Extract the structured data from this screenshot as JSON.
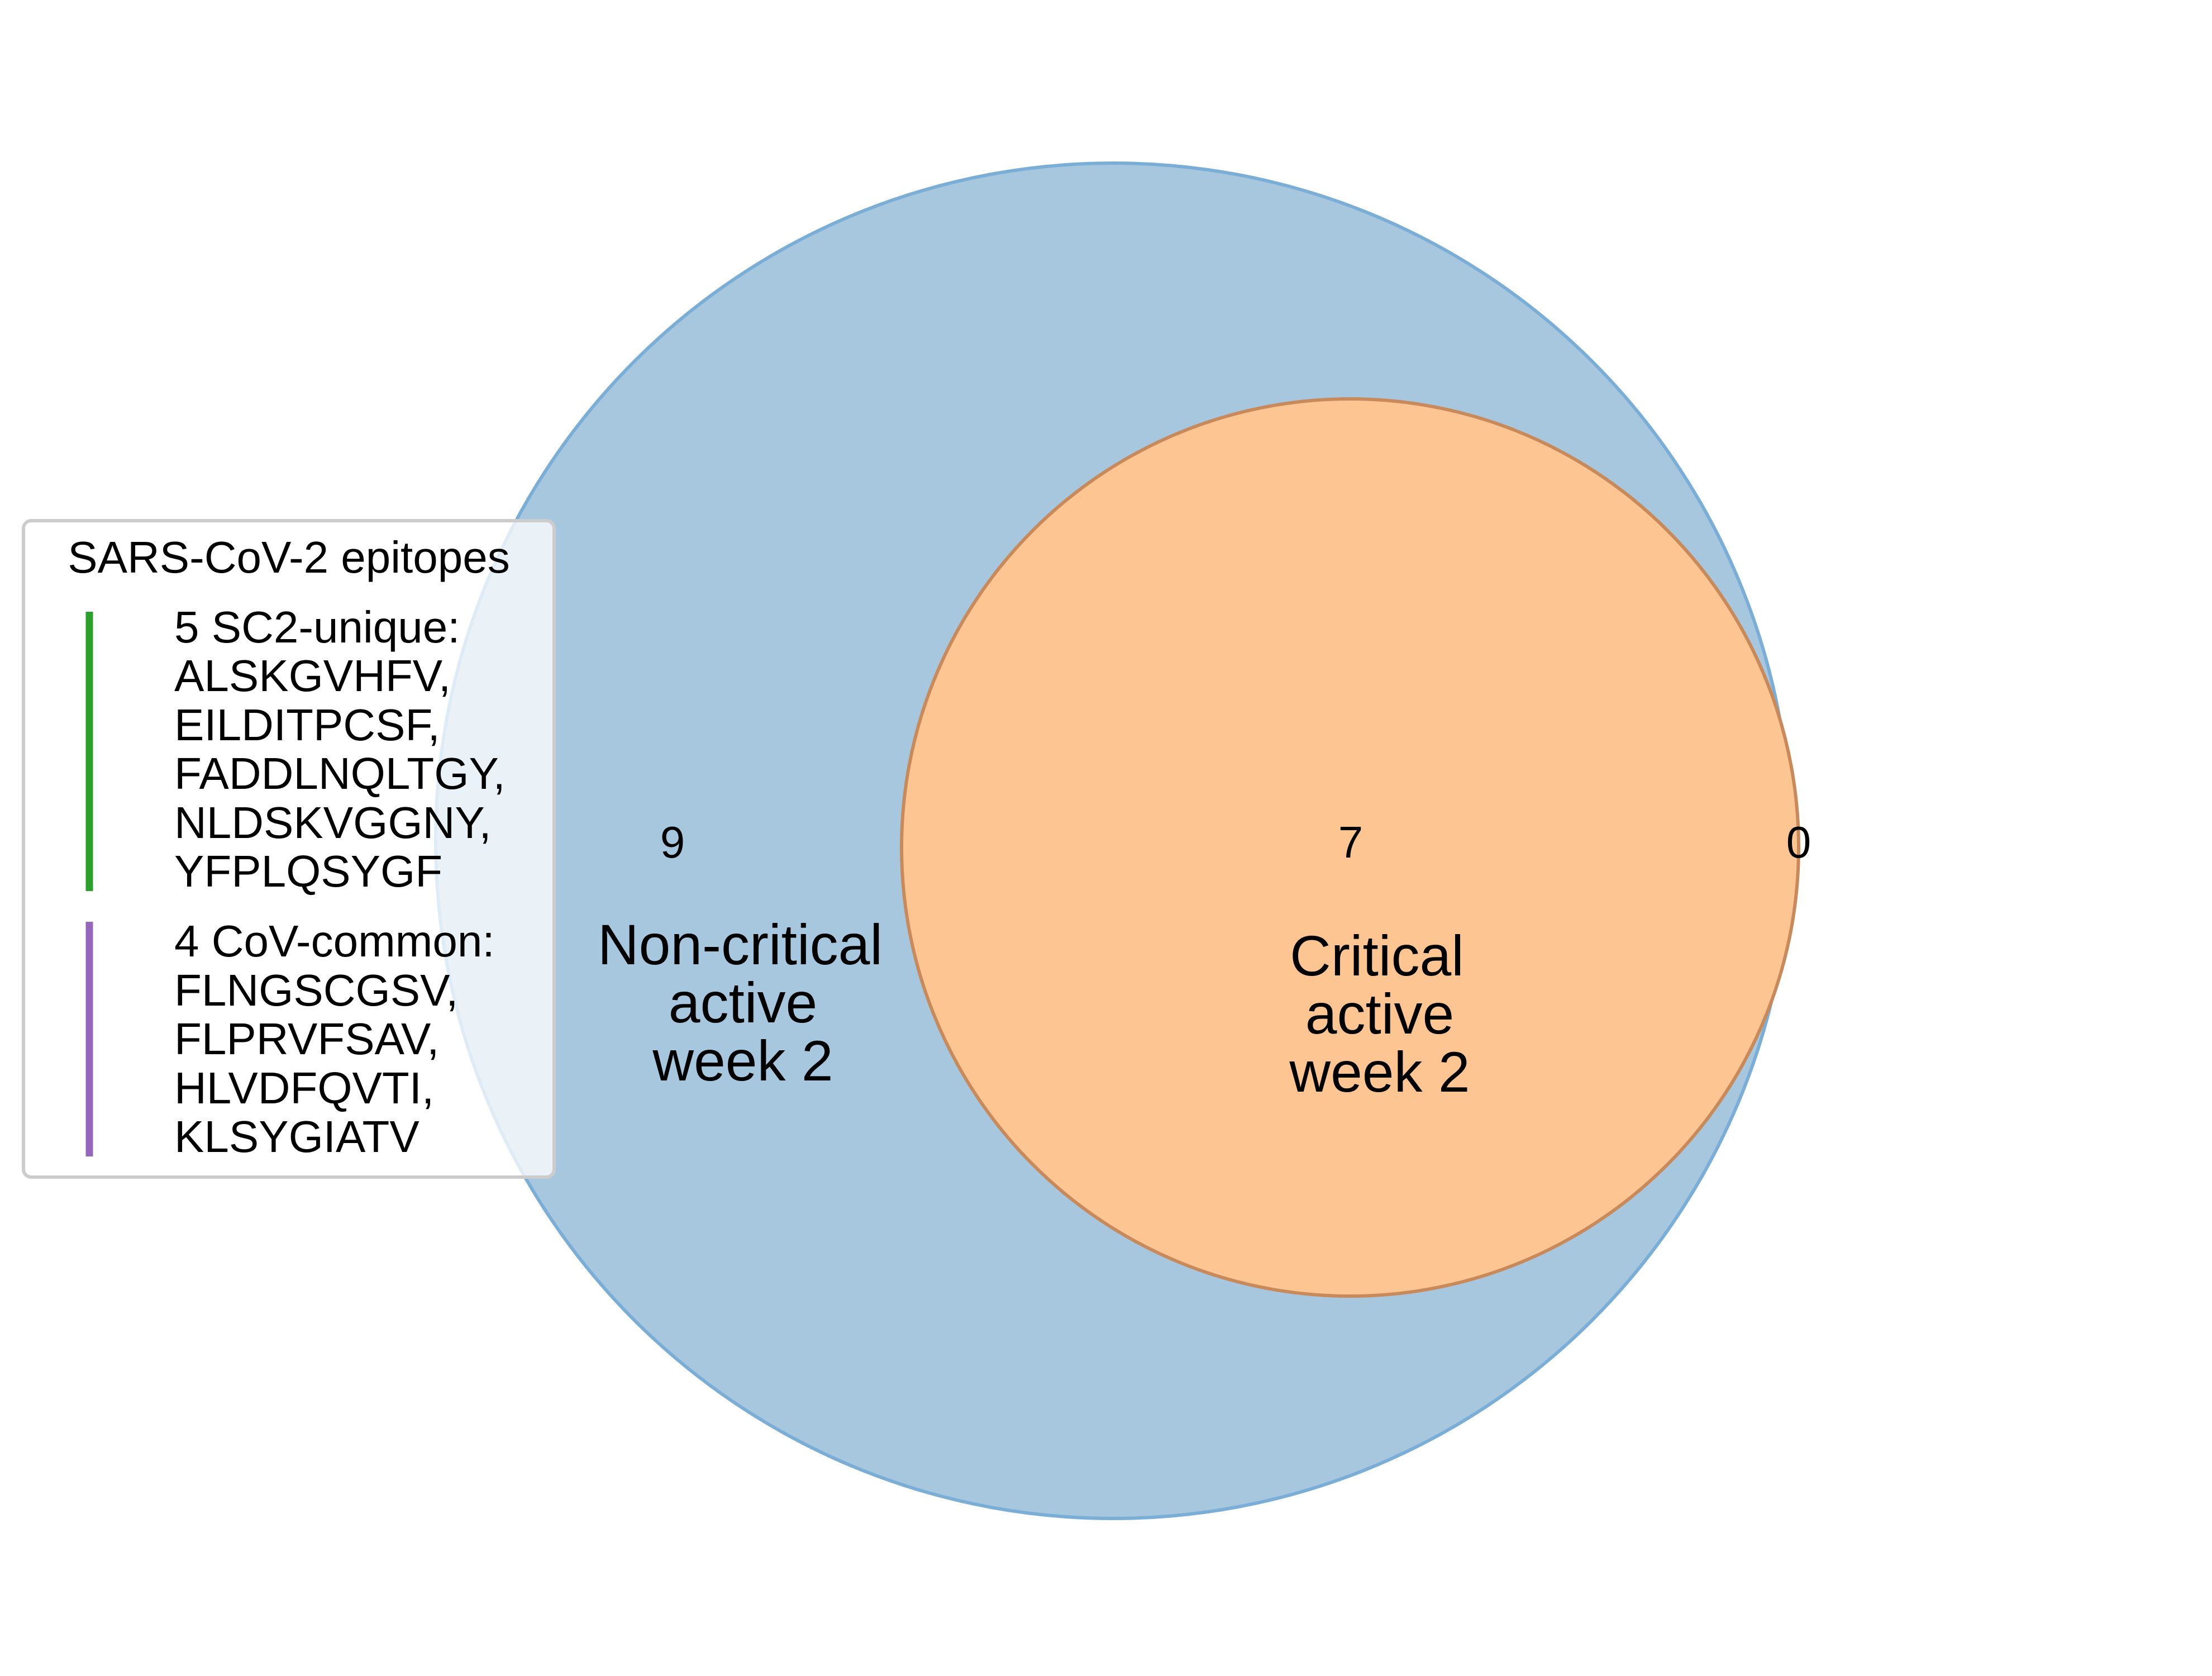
{
  "colors": {
    "set_a_fill": "#a7c7df",
    "set_a_stroke": "#7aaed6",
    "set_b_fill": "#fdc592",
    "set_b_stroke": "#c88a5a",
    "legend_bar_sc2": "#2ca02c",
    "legend_bar_cov": "#9467bd"
  },
  "sets": {
    "a": {
      "label_lines": [
        "Non-critical",
        "active",
        "week 2"
      ]
    },
    "b": {
      "label_lines": [
        "Critical",
        "active",
        "week 2"
      ]
    }
  },
  "counts": {
    "a_only": "9",
    "a_and_b": "7",
    "b_only": "0"
  },
  "legend": {
    "title": "SARS-CoV-2 epitopes",
    "groups": [
      {
        "color": "#2ca02c",
        "lines": [
          "5 SC2-unique:",
          "ALSKGVHFV,",
          "EILDITPCSF,",
          "FADDLNQLTGY,",
          "NLDSKVGGNY,",
          "YFPLQSYGF"
        ]
      },
      {
        "color": "#9467bd",
        "lines": [
          "4 CoV-common:",
          "FLNGSCGSV,",
          "FLPRVFSAV,",
          "HLVDFQVTI,",
          "KLSYGIATV"
        ]
      }
    ]
  }
}
